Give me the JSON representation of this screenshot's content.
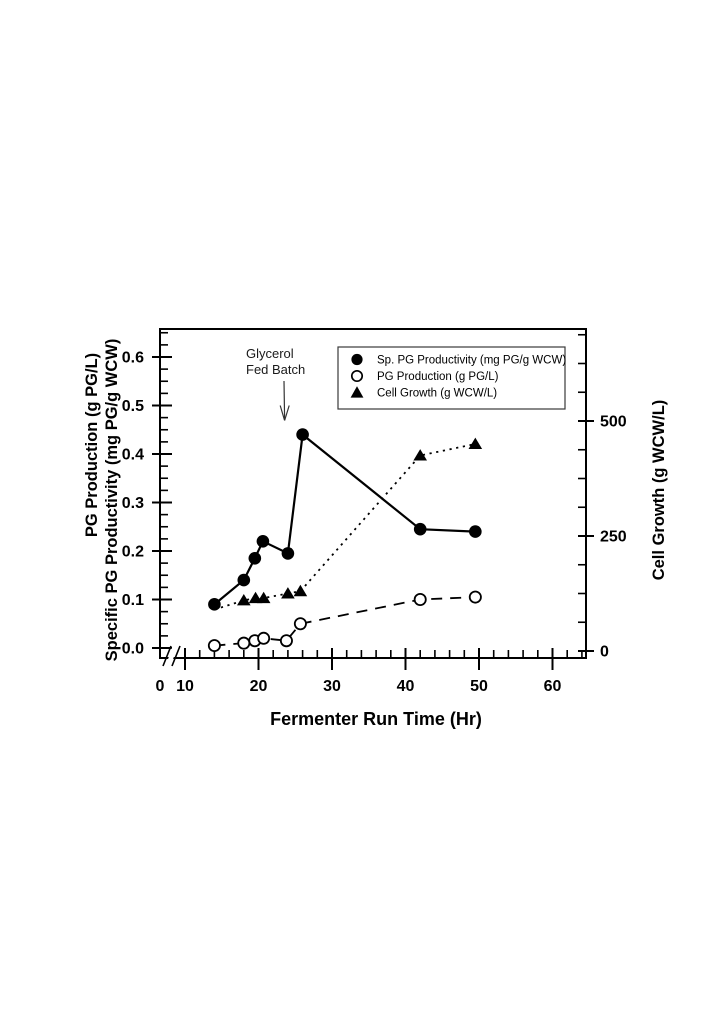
{
  "page": {
    "background": "#ffffff",
    "ink": "#000000"
  },
  "chart_data": {
    "type": "line",
    "title": "",
    "xlabel": "Fermenter Run Time (Hr)",
    "ylabel_left_line1": "PG Production (g PG/L)",
    "ylabel_left_line2": "Specific PG Productivity (mg PG/g WCW)",
    "ylabel_right": "Cell Growth (g WCW/L)",
    "x_ticks": [
      0,
      10,
      20,
      30,
      40,
      50,
      60
    ],
    "x_tick_labels": [
      "0",
      "10",
      "20",
      "30",
      "40",
      "50",
      "60"
    ],
    "x_minor_step": 2,
    "x_axis_break_between": [
      0,
      10
    ],
    "xlim": [
      0,
      64.5
    ],
    "y_left_ticks": [
      0.0,
      0.1,
      0.2,
      0.3,
      0.4,
      0.5,
      0.6
    ],
    "y_left_tick_labels": [
      "0.0",
      "0.1",
      "0.2",
      "0.3",
      "0.4",
      "0.5",
      "0.6"
    ],
    "y_left_minor_step": 0.025,
    "ylim_left": [
      0,
      0.66
    ],
    "y_right_ticks": [
      0,
      250,
      500
    ],
    "y_right_tick_labels": [
      "0",
      "250",
      "500"
    ],
    "y_right_minor_step": 62.5,
    "ylim_right": [
      0,
      700
    ],
    "grid": false,
    "legend_position": "top-right-inside",
    "series": [
      {
        "name": "Sp. PG Productivity (mg PG/g WCW)",
        "axis": "left",
        "marker": "filled-circle",
        "line_style": "solid",
        "x": [
          14,
          18,
          19.5,
          20.6,
          24,
          26,
          42,
          49.5
        ],
        "y": [
          0.09,
          0.14,
          0.185,
          0.22,
          0.195,
          0.44,
          0.245,
          0.24
        ]
      },
      {
        "name": "PG Production (g PG/L)",
        "axis": "left",
        "marker": "open-circle",
        "line_style": "dashed",
        "x": [
          14,
          18,
          19.5,
          20.7,
          23.8,
          25.7,
          42,
          49.5
        ],
        "y": [
          0.005,
          0.01,
          0.015,
          0.02,
          0.015,
          0.05,
          0.1,
          0.105
        ]
      },
      {
        "name": "Cell Growth (g WCW/L)",
        "axis": "right",
        "marker": "filled-triangle",
        "line_style": "dotted",
        "first_marker_hidden": true,
        "x": [
          14,
          18,
          19.6,
          20.7,
          24,
          25.7,
          42,
          49.5
        ],
        "y": [
          90,
          110,
          115,
          115,
          125,
          130,
          425,
          450
        ]
      }
    ],
    "annotation": {
      "line1": "Glycerol",
      "line2": "Fed Batch",
      "arrow_target_x": 26,
      "arrow_target_series": "Sp. PG Productivity (mg PG/g WCW)"
    }
  }
}
